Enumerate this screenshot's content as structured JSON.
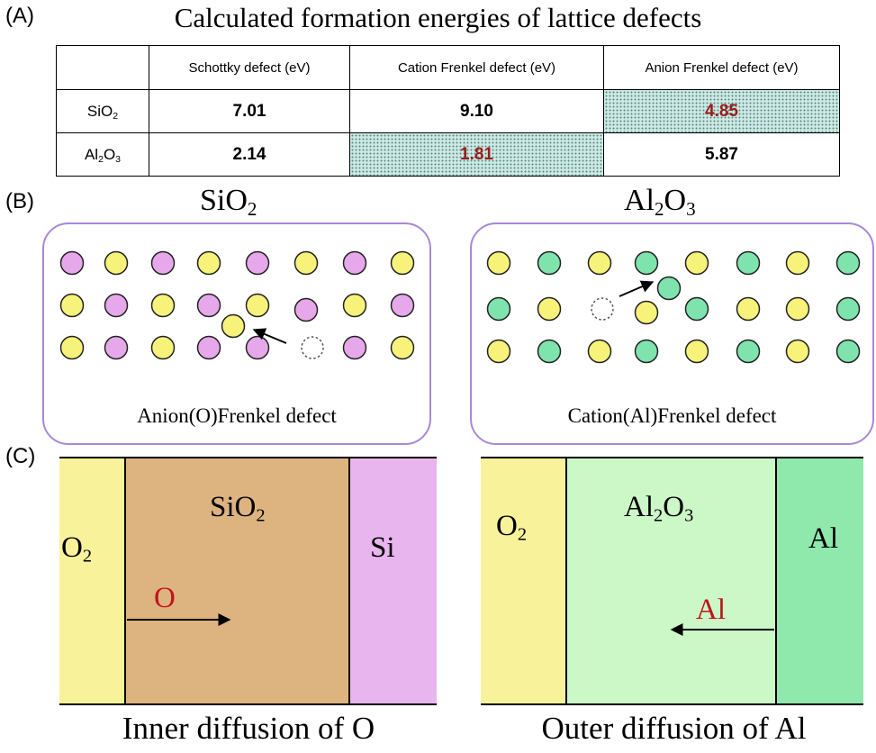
{
  "panel_a": {
    "label": "(A)",
    "title": "Calculated formation energies of lattice defects",
    "columns": [
      "Schottky defect (eV)",
      "Cation Frenkel defect (eV)",
      "Anion Frenkel defect (eV)"
    ],
    "rows": [
      {
        "base": "SiO",
        "sub1": "2",
        "mid": "",
        "sub2": "",
        "values": [
          "7.01",
          "9.10",
          "4.85"
        ],
        "highlight_index": 2
      },
      {
        "base": "Al",
        "sub1": "2",
        "mid": "O",
        "sub2": "3",
        "values": [
          "2.14",
          "1.81",
          "5.87"
        ],
        "highlight_index": 1
      }
    ],
    "colors": {
      "highlight_text": "#9b1b1b",
      "highlight_fill": "#cde9e3"
    }
  },
  "panel_b": {
    "label": "(B)",
    "sio2": {
      "name_base": "SiO",
      "name_sub": "2",
      "caption": "Anion(O)Frenkel defect"
    },
    "al2o3": {
      "name_a": "Al",
      "name_sub1": "2",
      "name_b": "O",
      "name_sub2": "3",
      "caption": "Cation(Al)Frenkel defect"
    },
    "colors": {
      "yellow": "#f6f27a",
      "pink": "#e6a8ea",
      "green": "#7fe3ad",
      "border": "#a888d8"
    }
  },
  "panel_c": {
    "label": "(C)",
    "left": {
      "gas": {
        "base": "O",
        "sub": "2"
      },
      "oxide": {
        "base": "SiO",
        "sub": "2"
      },
      "metal": "Si",
      "species": "O",
      "caption": "Inner diffusion of O",
      "colors": {
        "gas": "#f8f39a",
        "oxide": "#ddb380",
        "metal": "#e9b5ee"
      }
    },
    "right": {
      "gas": {
        "base": "O",
        "sub": "2"
      },
      "oxide": {
        "a": "Al",
        "sub1": "2",
        "b": "O",
        "sub2": "3"
      },
      "metal": "Al",
      "species": "Al",
      "caption": "Outer diffusion of Al",
      "colors": {
        "gas": "#f8f39a",
        "oxide": "#ccf8c8",
        "metal": "#8fe8ac"
      }
    },
    "colors": {
      "species_text": "#c0141b"
    }
  }
}
